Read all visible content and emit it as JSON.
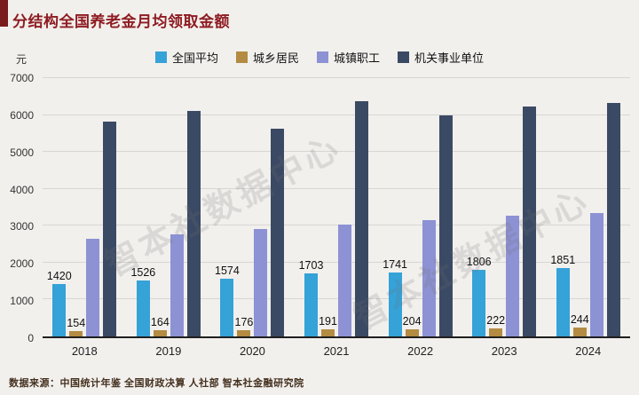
{
  "page": {
    "title": "分结构全国养老金月均领取金额",
    "y_unit": "元",
    "source": "数据来源：中国统计年鉴 全国财政决算 人社部 智本社金融研究院",
    "watermark": "智本社数据中心"
  },
  "chart_data": {
    "type": "bar",
    "title": "分结构全国养老金月均领取金额",
    "xlabel": "",
    "ylabel": "元",
    "ylim": [
      0,
      7000
    ],
    "yticks": [
      0,
      1000,
      2000,
      3000,
      4000,
      5000,
      6000,
      7000
    ],
    "grid": true,
    "legend_position": "top",
    "categories": [
      "2018",
      "2019",
      "2020",
      "2021",
      "2022",
      "2023",
      "2024"
    ],
    "series": [
      {
        "name": "全国平均",
        "color": "#35a2d8",
        "labels_shown": true,
        "values": [
          1420,
          1526,
          1574,
          1703,
          1741,
          1806,
          1851
        ]
      },
      {
        "name": "城乡居民",
        "color": "#b38b43",
        "labels_shown": true,
        "values": [
          154,
          164,
          176,
          191,
          204,
          222,
          244
        ]
      },
      {
        "name": "城镇职工",
        "color": "#8d92d4",
        "labels_shown": false,
        "values": [
          2640,
          2770,
          2900,
          3040,
          3150,
          3260,
          3340
        ]
      },
      {
        "name": "机关事业单位",
        "color": "#3b4a64",
        "labels_shown": false,
        "values": [
          5820,
          6100,
          5630,
          6370,
          6000,
          6240,
          6320
        ]
      }
    ]
  }
}
